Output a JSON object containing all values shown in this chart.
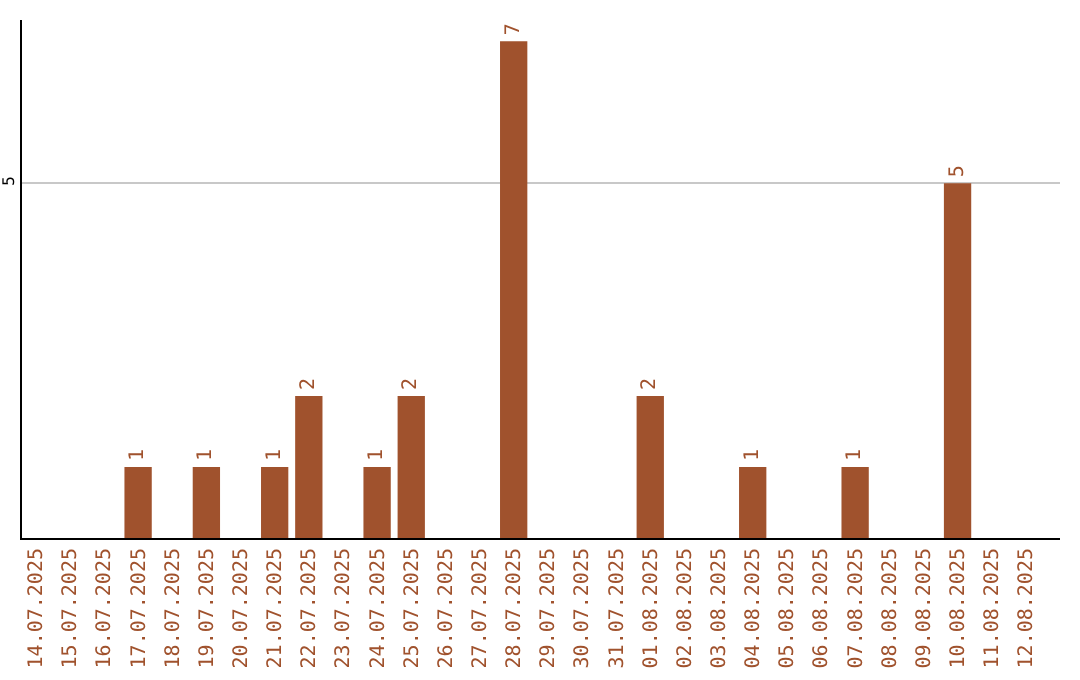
{
  "chart_data": {
    "type": "bar",
    "categories": [
      "14.07.2025",
      "15.07.2025",
      "16.07.2025",
      "17.07.2025",
      "18.07.2025",
      "19.07.2025",
      "20.07.2025",
      "21.07.2025",
      "22.07.2025",
      "23.07.2025",
      "24.07.2025",
      "25.07.2025",
      "26.07.2025",
      "27.07.2025",
      "28.07.2025",
      "29.07.2025",
      "30.07.2025",
      "31.07.2025",
      "01.08.2025",
      "02.08.2025",
      "03.08.2025",
      "04.08.2025",
      "05.08.2025",
      "06.08.2025",
      "07.08.2025",
      "08.08.2025",
      "09.08.2025",
      "10.08.2025",
      "11.08.2025",
      "12.08.2025"
    ],
    "values": [
      0,
      0,
      0,
      1,
      0,
      1,
      0,
      1,
      2,
      0,
      1,
      2,
      0,
      0,
      7,
      0,
      0,
      0,
      2,
      0,
      0,
      1,
      0,
      0,
      1,
      0,
      0,
      5,
      0,
      0
    ],
    "value_labels": [
      null,
      null,
      null,
      "1",
      null,
      "1",
      null,
      "1",
      "2",
      null,
      "1",
      "2",
      null,
      null,
      "7",
      null,
      null,
      null,
      "2",
      null,
      null,
      "1",
      null,
      null,
      "1",
      null,
      null,
      "5",
      null,
      null
    ],
    "color": "#a0522d",
    "ylim": [
      0,
      7.3
    ],
    "yticks": [
      5
    ],
    "grid": "y",
    "legend": false
  }
}
